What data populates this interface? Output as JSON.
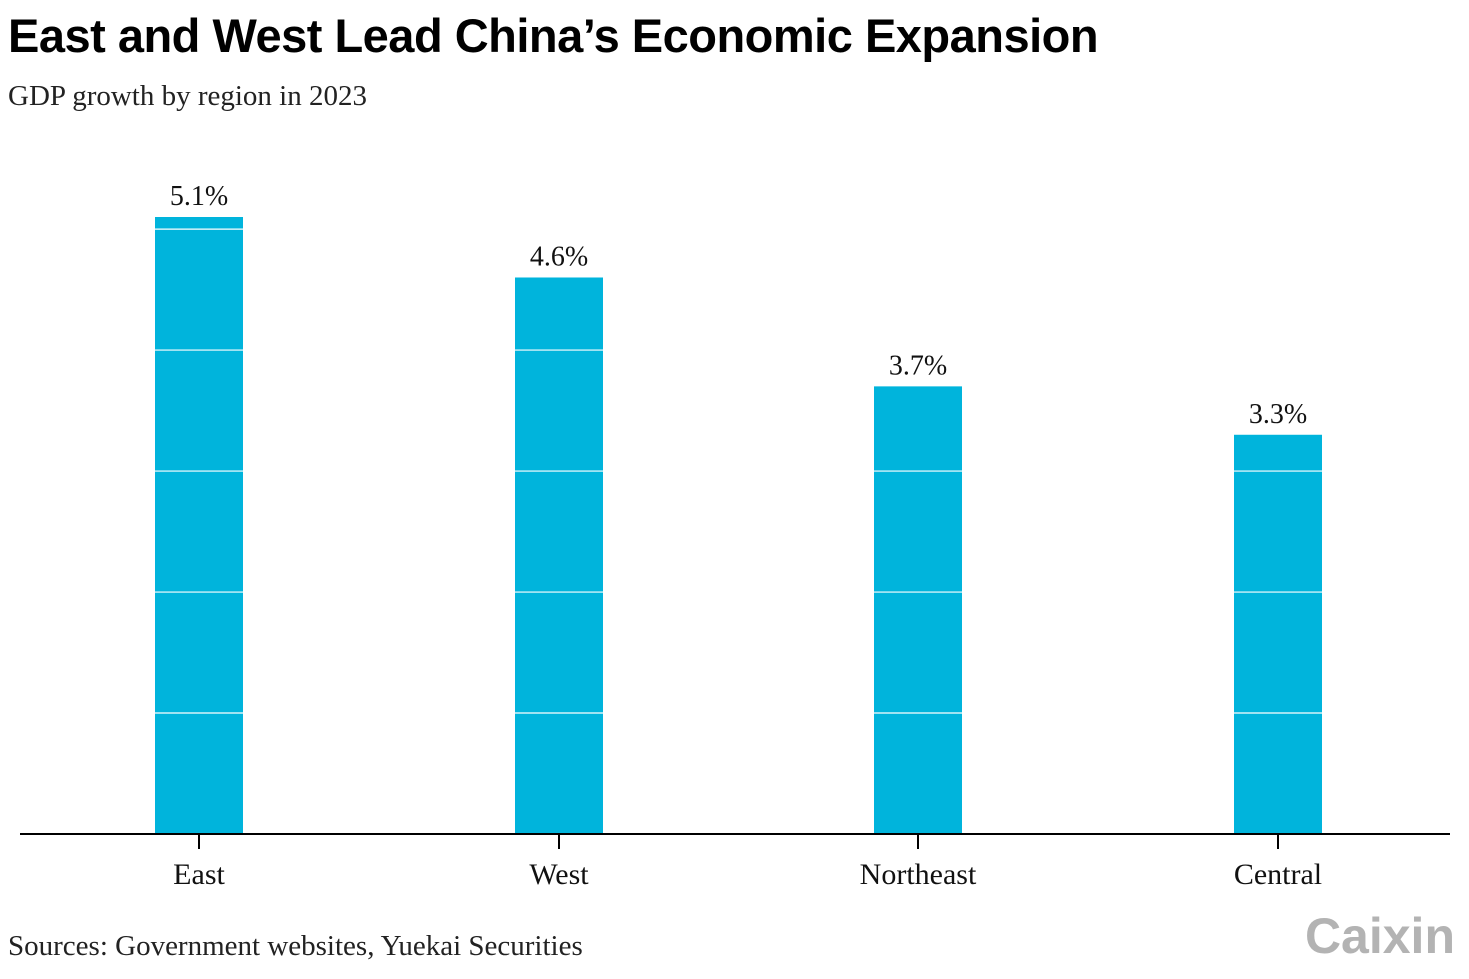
{
  "title": "East and West Lead China’s Economic Expansion",
  "subtitle": "GDP growth by region in 2023",
  "source": "Sources: Government websites, Yuekai Securities",
  "logo_text": "Caixin",
  "colors": {
    "bar": "#00b4dc",
    "gridline": "#ffffff",
    "axis": "#000000",
    "logo": "#b3b3b3"
  },
  "chart_data": {
    "type": "bar",
    "categories": [
      "East",
      "West",
      "Northeast",
      "Central"
    ],
    "values": [
      5.1,
      4.6,
      3.7,
      3.3
    ],
    "data_labels": [
      "5.1%",
      "4.6%",
      "3.7%",
      "3.3%"
    ],
    "title": "East and West Lead China’s Economic Expansion",
    "subtitle": "GDP growth by region in 2023",
    "xlabel": "",
    "ylabel": "",
    "ylim": [
      0,
      5.1
    ],
    "gridlines": [
      1,
      2,
      3,
      4,
      5
    ],
    "grid": true,
    "unit": "%"
  }
}
